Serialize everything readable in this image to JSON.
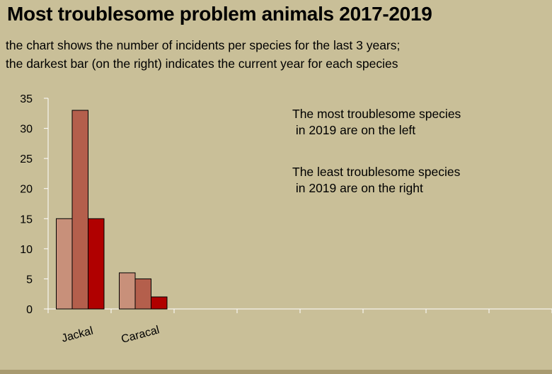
{
  "title": "Most troublesome problem animals 2017-2019",
  "subtitle_lines": [
    "the chart shows the number of incidents per species for the last 3 years;",
    "the darkest bar (on the right) indicates the current year for each species"
  ],
  "annotations": [
    [
      "The most troublesome species",
      " in 2019 are on the left"
    ],
    [
      "The least troublesome species",
      " in 2019 are on the right"
    ]
  ],
  "colors": {
    "background": "#c9bf98",
    "series": [
      "#c8907a",
      "#b45f4c",
      "#b00000"
    ],
    "axis": "#ffffff",
    "bar_border": "#000000"
  },
  "chart_data": {
    "type": "bar",
    "categories": [
      "Jackal",
      "Caracal",
      "",
      "",
      "",
      "",
      "",
      ""
    ],
    "series": [
      {
        "values": [
          15,
          6,
          null,
          null,
          null,
          null,
          null,
          null
        ]
      },
      {
        "values": [
          33,
          5,
          null,
          null,
          null,
          null,
          null,
          null
        ]
      },
      {
        "values": [
          15,
          2,
          null,
          null,
          null,
          null,
          null,
          null
        ]
      }
    ],
    "y_ticks": [
      0,
      5,
      10,
      15,
      20,
      25,
      30,
      35
    ],
    "ylim": [
      0,
      35
    ],
    "grid": false,
    "legend": "none"
  }
}
